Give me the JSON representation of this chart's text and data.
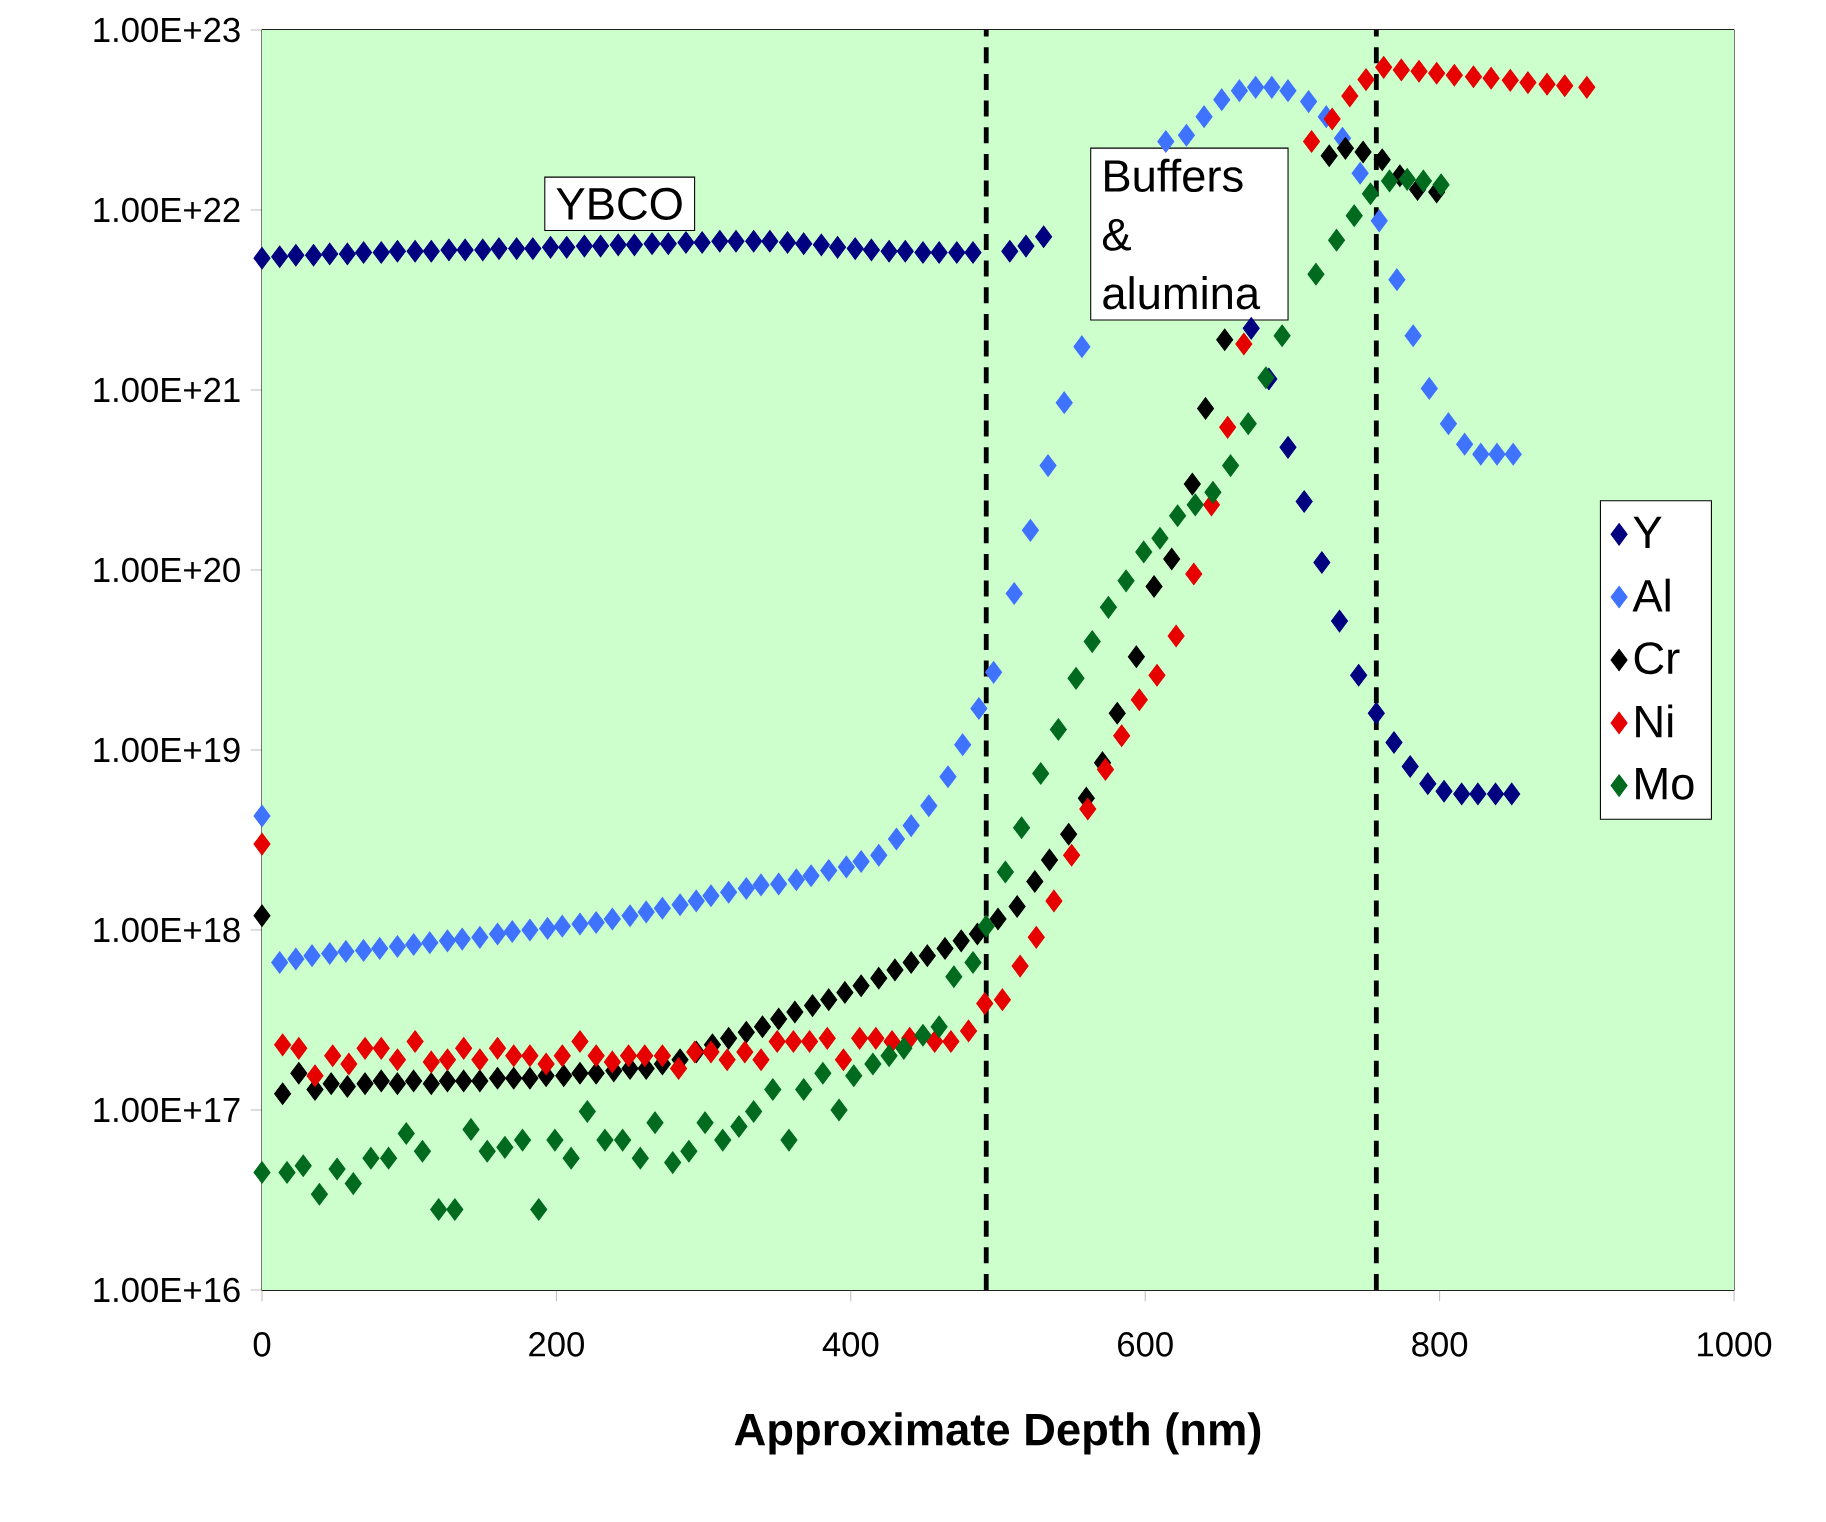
{
  "chart_data": {
    "type": "scatter",
    "xlabel": "Approximate Depth (nm)",
    "log": "y",
    "grid": "y",
    "legend": "right",
    "marker": "diamond",
    "xlim": [
      0,
      1000
    ],
    "xticks": [
      0,
      200,
      400,
      600,
      800,
      1000
    ],
    "ylim": [
      1e+16,
      1e+23
    ],
    "yticks": [
      {
        "value": 1e+16,
        "label": "1.00E+16"
      },
      {
        "value": 1e+17,
        "label": "1.00E+17"
      },
      {
        "value": 1e+18,
        "label": "1.00E+18"
      },
      {
        "value": 1e+19,
        "label": "1.00E+19"
      },
      {
        "value": 1e+20,
        "label": "1.00E+20"
      },
      {
        "value": 1e+21,
        "label": "1.00E+21"
      },
      {
        "value": 1e+22,
        "label": "1.00E+22"
      },
      {
        "value": 1e+23,
        "label": "1.00E+23"
      }
    ],
    "annotations": [
      "YBCO",
      "Buffers & alumina"
    ],
    "ref_lines": [
      {
        "axis": "x",
        "value": 492,
        "color": "#000000",
        "line_style": "dashed"
      },
      {
        "axis": "x",
        "value": 757,
        "color": "#000000",
        "line_style": "dashed"
      }
    ],
    "series": [
      {
        "name": "Y",
        "color": "#000080",
        "x": [
          0,
          12,
          23,
          35,
          46,
          58,
          69,
          81,
          92,
          104,
          115,
          127,
          138,
          150,
          161,
          173,
          184,
          196,
          207,
          219,
          230,
          242,
          253,
          265,
          276,
          288,
          299,
          311,
          322,
          334,
          345,
          357,
          368,
          380,
          391,
          403,
          414,
          426,
          437,
          449,
          460,
          472,
          483,
          508,
          519,
          531,
          672,
          684,
          697,
          708,
          720,
          732,
          745,
          757,
          769,
          780,
          792,
          803,
          815,
          826,
          838,
          849
        ],
        "values": [
          5.4e+21,
          5.5e+21,
          5.6e+21,
          5.6e+21,
          5.7e+21,
          5.7e+21,
          5.8e+21,
          5.8e+21,
          5.9e+21,
          5.9e+21,
          5.9e+21,
          6e+21,
          6e+21,
          6e+21,
          6.1e+21,
          6.1e+21,
          6.1e+21,
          6.2e+21,
          6.2e+21,
          6.3e+21,
          6.3e+21,
          6.4e+21,
          6.4e+21,
          6.5e+21,
          6.5e+21,
          6.6e+21,
          6.6e+21,
          6.7e+21,
          6.7e+21,
          6.7e+21,
          6.7e+21,
          6.6e+21,
          6.5e+21,
          6.4e+21,
          6.2e+21,
          6.1e+21,
          6e+21,
          5.9e+21,
          5.9e+21,
          5.8e+21,
          5.8e+21,
          5.8e+21,
          5.8e+21,
          5.9e+21,
          6.3e+21,
          7.1e+21,
          2.2e+21,
          1.15e+21,
          4.8e+20,
          2.4e+20,
          1.1e+20,
          5.2e+19,
          2.6e+19,
          1.6e+19,
          1.1e+19,
          8.1e+18,
          6.5e+18,
          5.9e+18,
          5.7e+18,
          5.7e+18,
          5.7e+18,
          5.7e+18
        ]
      },
      {
        "name": "Al",
        "color": "#3f72ff",
        "x": [
          0,
          12,
          23,
          34,
          46,
          57,
          69,
          80,
          92,
          103,
          114,
          126,
          136,
          148,
          160,
          170,
          182,
          194,
          204,
          216,
          227,
          238,
          250,
          261,
          272,
          284,
          295,
          305,
          317,
          329,
          339,
          351,
          363,
          373,
          385,
          397,
          407,
          419,
          431,
          441,
          453,
          466,
          476,
          487,
          497,
          511,
          522,
          534,
          545,
          557,
          614,
          628,
          640,
          652,
          664,
          675,
          686,
          697,
          711,
          723,
          734,
          746,
          759,
          771,
          782,
          793,
          806,
          817,
          828,
          839,
          850
        ],
        "values": [
          4.3e+18,
          6.6e+17,
          6.9e+17,
          7.2e+17,
          7.4e+17,
          7.6e+17,
          7.7e+17,
          7.9e+17,
          8.1e+17,
          8.3e+17,
          8.5e+17,
          8.7e+17,
          8.9e+17,
          9.1e+17,
          9.5e+17,
          9.8e+17,
          1e+18,
          1.02e+18,
          1.05e+18,
          1.08e+18,
          1.1e+18,
          1.15e+18,
          1.2e+18,
          1.26e+18,
          1.32e+18,
          1.38e+18,
          1.45e+18,
          1.55e+18,
          1.62e+18,
          1.7e+18,
          1.78e+18,
          1.8e+18,
          1.9e+18,
          2e+18,
          2.14e+18,
          2.24e+18,
          2.4e+18,
          2.6e+18,
          3.2e+18,
          3.8e+18,
          4.9e+18,
          7.1e+18,
          1.07e+19,
          1.7e+19,
          2.7e+19,
          7.4e+19,
          1.66e+20,
          3.8e+20,
          8.5e+20,
          1.74e+21,
          2.4e+22,
          2.6e+22,
          3.3e+22,
          4.1e+22,
          4.6e+22,
          4.8e+22,
          4.8e+22,
          4.6e+22,
          4e+22,
          3.3e+22,
          2.5e+22,
          1.6e+22,
          8.7e+21,
          4.1e+21,
          2e+21,
          1.02e+21,
          6.5e+20,
          5e+20,
          4.4e+20,
          4.4e+20,
          4.4e+20
        ]
      },
      {
        "name": "Cr",
        "color": "#000000",
        "x": [
          0,
          14,
          25,
          36,
          47,
          58,
          70,
          81,
          92,
          103,
          115,
          126,
          137,
          148,
          160,
          171,
          182,
          193,
          205,
          216,
          227,
          239,
          250,
          261,
          272,
          284,
          295,
          306,
          317,
          329,
          340,
          351,
          362,
          374,
          385,
          396,
          407,
          419,
          430,
          441,
          452,
          464,
          475,
          486,
          500,
          513,
          525,
          535,
          548,
          560,
          571,
          581,
          594,
          606,
          618,
          632,
          641,
          654,
          725,
          736,
          748,
          761,
          773,
          785,
          798
        ],
        "values": [
          1.2e+18,
          1.23e+17,
          1.6e+17,
          1.3e+17,
          1.4e+17,
          1.35e+17,
          1.4e+17,
          1.45e+17,
          1.4e+17,
          1.45e+17,
          1.4e+17,
          1.45e+17,
          1.45e+17,
          1.45e+17,
          1.5e+17,
          1.5e+17,
          1.5e+17,
          1.55e+17,
          1.55e+17,
          1.6e+17,
          1.6e+17,
          1.65e+17,
          1.7e+17,
          1.7e+17,
          1.8e+17,
          1.9e+17,
          2.1e+17,
          2.3e+17,
          2.5e+17,
          2.7e+17,
          2.9e+17,
          3.2e+17,
          3.5e+17,
          3.8e+17,
          4.1e+17,
          4.5e+17,
          4.9e+17,
          5.4e+17,
          6e+17,
          6.6e+17,
          7.2e+17,
          7.9e+17,
          8.7e+17,
          9.5e+17,
          1.15e+18,
          1.35e+18,
          1.86e+18,
          2.45e+18,
          3.4e+18,
          5.4e+18,
          8.5e+18,
          1.6e+19,
          3.3e+19,
          8.1e+19,
          1.15e+20,
          3e+20,
          7.9e+20,
          1.9e+21,
          2e+22,
          2.2e+22,
          2.1e+22,
          1.9e+22,
          1.55e+22,
          1.3e+22,
          1.26e+22
        ]
      },
      {
        "name": "Ni",
        "color": "#e60000",
        "x": [
          0,
          14,
          25,
          36,
          48,
          59,
          70,
          81,
          92,
          104,
          115,
          126,
          137,
          148,
          160,
          171,
          182,
          193,
          204,
          216,
          227,
          238,
          249,
          260,
          272,
          283,
          294,
          305,
          316,
          328,
          339,
          350,
          361,
          372,
          384,
          395,
          406,
          417,
          428,
          440,
          457,
          468,
          480,
          491,
          503,
          515,
          526,
          538,
          550,
          561,
          573,
          584,
          596,
          608,
          621,
          633,
          645,
          656,
          667,
          713,
          727,
          739,
          750,
          762,
          774,
          786,
          798,
          810,
          823,
          835,
          848,
          860,
          873,
          885,
          900
        ],
        "values": [
          3e+18,
          2.3e+17,
          2.2e+17,
          1.55e+17,
          2e+17,
          1.8e+17,
          2.2e+17,
          2.2e+17,
          1.9e+17,
          2.4e+17,
          1.85e+17,
          1.9e+17,
          2.2e+17,
          1.9e+17,
          2.2e+17,
          2e+17,
          2e+17,
          1.8e+17,
          2e+17,
          2.4e+17,
          2e+17,
          1.85e+17,
          2e+17,
          2e+17,
          2e+17,
          1.7e+17,
          2.1e+17,
          2.1e+17,
          1.9e+17,
          2.1e+17,
          1.9e+17,
          2.4e+17,
          2.4e+17,
          2.4e+17,
          2.5e+17,
          1.9e+17,
          2.5e+17,
          2.5e+17,
          2.4e+17,
          2.5e+17,
          2.4e+17,
          2.4e+17,
          2.75e+17,
          3.9e+17,
          4.1e+17,
          6.3e+17,
          9.1e+17,
          1.45e+18,
          2.6e+18,
          4.7e+18,
          7.8e+18,
          1.2e+19,
          1.9e+19,
          2.6e+19,
          4.3e+19,
          9.5e+19,
          2.3e+20,
          6.2e+20,
          1.8e+21,
          2.4e+22,
          3.2e+22,
          4.3e+22,
          5.3e+22,
          6.2e+22,
          6e+22,
          5.9e+22,
          5.75e+22,
          5.6e+22,
          5.5e+22,
          5.4e+22,
          5.25e+22,
          5.1e+22,
          5e+22,
          4.9e+22,
          4.8e+22
        ]
      },
      {
        "name": "Mo",
        "color": "#006a1e",
        "x": [
          0,
          17,
          28,
          39,
          51,
          62,
          74,
          86,
          98,
          109,
          120,
          131,
          142,
          153,
          165,
          177,
          188,
          199,
          210,
          221,
          233,
          245,
          257,
          267,
          279,
          290,
          301,
          313,
          324,
          334,
          347,
          358,
          368,
          381,
          392,
          402,
          415,
          426,
          436,
          449,
          460,
          470,
          483,
          492,
          505,
          516,
          529,
          541,
          553,
          564,
          575,
          587,
          599,
          610,
          622,
          634,
          646,
          658,
          670,
          682,
          693,
          716,
          730,
          742,
          753,
          766,
          778,
          789,
          801
        ],
        "values": [
          4.5e+16,
          4.5e+16,
          4.9e+16,
          3.4e+16,
          4.7e+16,
          3.9e+16,
          5.4e+16,
          5.4e+16,
          7.4e+16,
          5.9e+16,
          2.8e+16,
          2.8e+16,
          7.8e+16,
          5.9e+16,
          6.2e+16,
          6.8e+16,
          2.8e+16,
          6.8e+16,
          5.4e+16,
          9.8e+16,
          6.8e+16,
          6.8e+16,
          5.4e+16,
          8.5e+16,
          5.1e+16,
          5.9e+16,
          8.5e+16,
          6.8e+16,
          8.1e+16,
          9.8e+16,
          1.3e+17,
          6.8e+16,
          1.3e+17,
          1.6e+17,
          1e+17,
          1.55e+17,
          1.8e+17,
          2e+17,
          2.2e+17,
          2.6e+17,
          2.9e+17,
          5.5e+17,
          6.6e+17,
          1.05e+18,
          2.1e+18,
          3.7e+18,
          7.4e+18,
          1.3e+19,
          2.5e+19,
          4e+19,
          6.2e+19,
          8.7e+19,
          1.26e+20,
          1.5e+20,
          2e+20,
          2.3e+20,
          2.7e+20,
          3.8e+20,
          6.5e+20,
          1.17e+21,
          2e+21,
          4.4e+21,
          6.8e+21,
          9.3e+21,
          1.23e+22,
          1.45e+22,
          1.48e+22,
          1.45e+22,
          1.38e+22
        ]
      }
    ]
  }
}
